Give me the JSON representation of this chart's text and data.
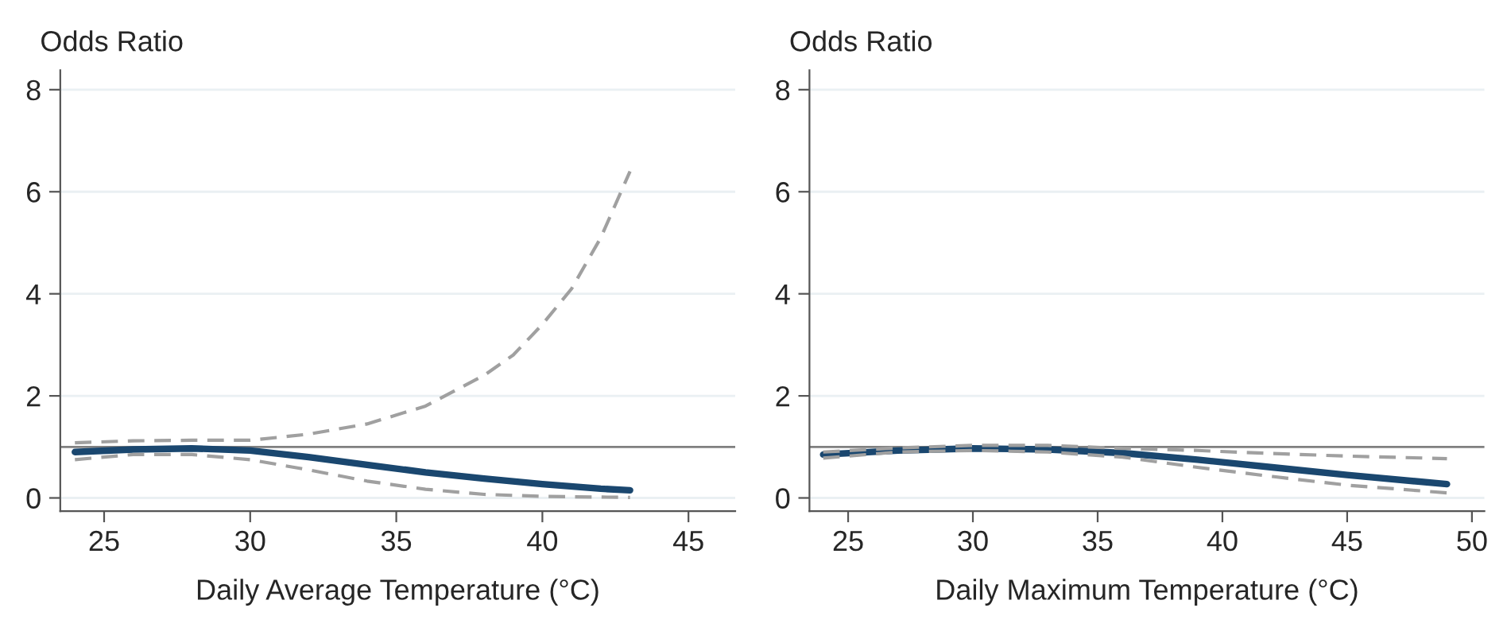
{
  "chart_data": [
    {
      "type": "line",
      "ylabel": "Odds Ratio",
      "xlabel": "Daily Average Temperature (°C)",
      "xlim": [
        23.5,
        46.6
      ],
      "xticks": [
        25,
        30,
        35,
        40,
        45
      ],
      "ylim": [
        -0.26,
        8.38
      ],
      "yticks": [
        0,
        2,
        4,
        6,
        8
      ],
      "grid": "y",
      "legend": false,
      "ref_lines": [
        {
          "axis": "y",
          "value": 1,
          "color": "#808080",
          "line_style": "solid"
        }
      ],
      "series": [
        {
          "color": "#1a476f",
          "line_style": "solid",
          "x": [
            24,
            26,
            28,
            30,
            32,
            34,
            36,
            38,
            40,
            42,
            43
          ],
          "values": [
            0.9,
            0.95,
            0.97,
            0.93,
            0.8,
            0.65,
            0.5,
            0.38,
            0.27,
            0.18,
            0.15
          ]
        },
        {
          "color": "#a0a0a0",
          "line_style": "dashed",
          "x": [
            24,
            26,
            28,
            30,
            32,
            34,
            36,
            38,
            39,
            40,
            41,
            42,
            43
          ],
          "values": [
            1.08,
            1.12,
            1.13,
            1.13,
            1.25,
            1.45,
            1.8,
            2.4,
            2.8,
            3.4,
            4.1,
            5.1,
            6.4
          ]
        },
        {
          "color": "#a0a0a0",
          "line_style": "dashed",
          "x": [
            24,
            26,
            28,
            30,
            32,
            34,
            36,
            38,
            40,
            43
          ],
          "values": [
            0.75,
            0.85,
            0.85,
            0.75,
            0.55,
            0.33,
            0.17,
            0.07,
            0.03,
            0.01
          ]
        }
      ]
    },
    {
      "type": "line",
      "ylabel": "Odds Ratio",
      "xlabel": "Daily Maximum Temperature (°C)",
      "xlim": [
        23.45,
        50.5
      ],
      "xticks": [
        25,
        30,
        35,
        40,
        45,
        50
      ],
      "ylim": [
        -0.26,
        8.38
      ],
      "yticks": [
        0,
        2,
        4,
        6,
        8
      ],
      "grid": "y",
      "legend": false,
      "ref_lines": [
        {
          "axis": "y",
          "value": 1,
          "color": "#808080",
          "line_style": "solid"
        }
      ],
      "series": [
        {
          "color": "#1a476f",
          "line_style": "solid",
          "x": [
            24,
            27,
            30,
            33,
            36,
            39,
            42,
            45,
            49
          ],
          "values": [
            0.85,
            0.93,
            0.97,
            0.95,
            0.88,
            0.75,
            0.6,
            0.45,
            0.27
          ]
        },
        {
          "color": "#a0a0a0",
          "line_style": "dashed",
          "x": [
            24,
            27,
            30,
            33,
            36,
            39,
            42,
            45,
            49
          ],
          "values": [
            0.9,
            0.98,
            1.03,
            1.03,
            0.97,
            0.93,
            0.87,
            0.82,
            0.77
          ]
        },
        {
          "color": "#a0a0a0",
          "line_style": "dashed",
          "x": [
            24,
            27,
            30,
            33,
            36,
            39,
            42,
            45,
            49
          ],
          "values": [
            0.78,
            0.9,
            0.93,
            0.9,
            0.8,
            0.6,
            0.42,
            0.25,
            0.1
          ]
        }
      ]
    }
  ]
}
